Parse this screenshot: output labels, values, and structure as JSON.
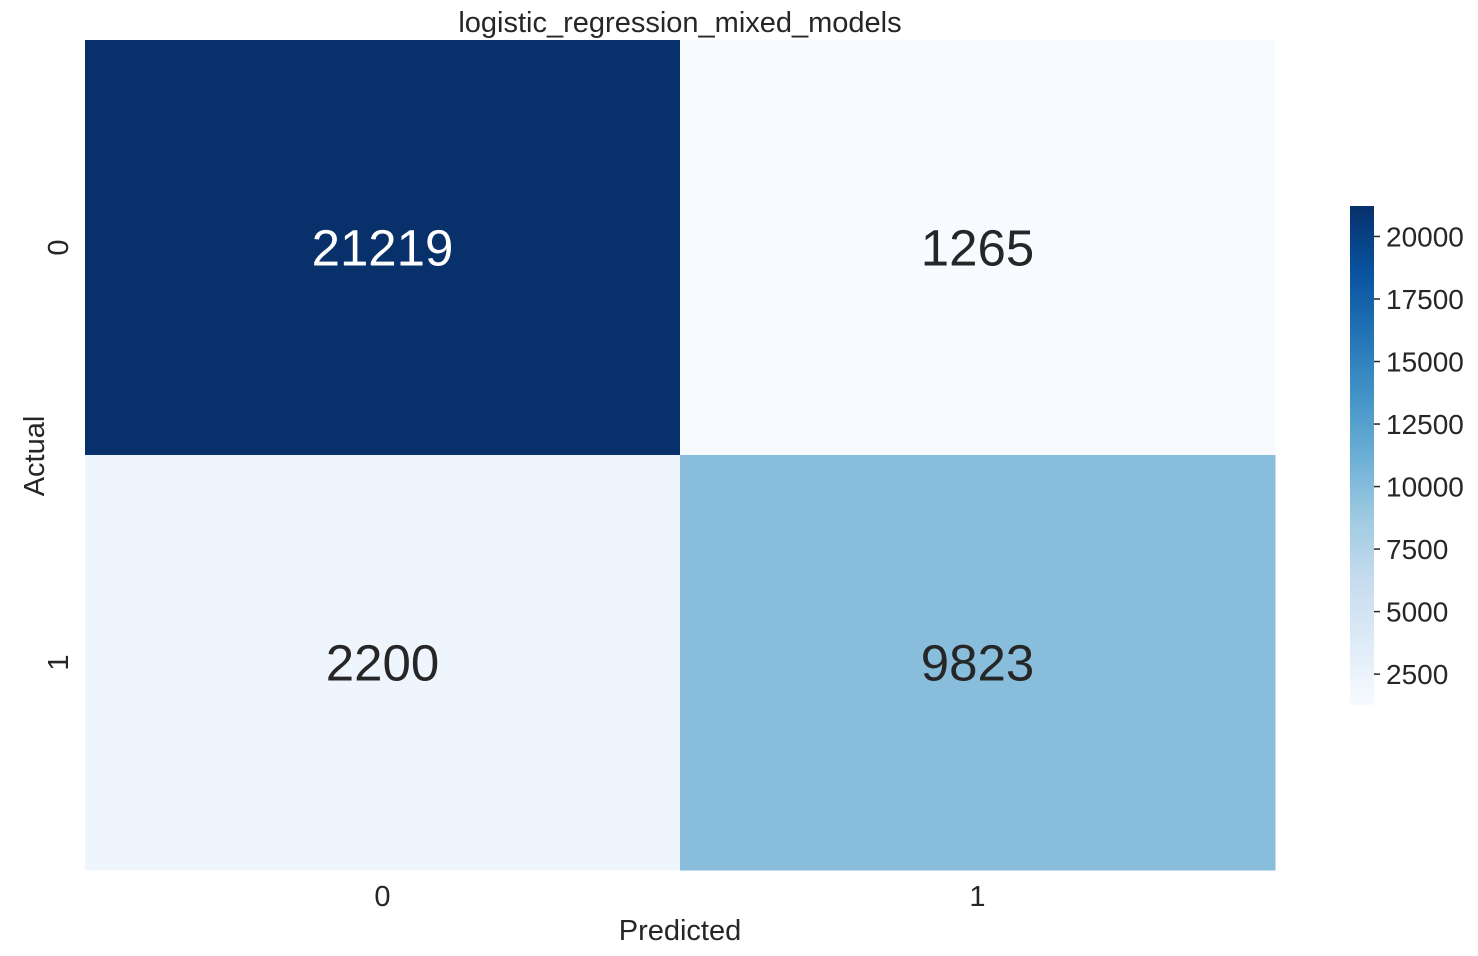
{
  "chart_data": {
    "type": "heatmap",
    "title": "logistic_regression_mixed_models",
    "xlabel": "Predicted",
    "ylabel": "Actual",
    "x_categories": [
      "0",
      "1"
    ],
    "y_categories": [
      "0",
      "1"
    ],
    "values": [
      [
        21219,
        1265
      ],
      [
        2200,
        9823
      ]
    ],
    "colormap": "Blues",
    "colorbar": {
      "min": 1265,
      "max": 21219,
      "ticks": [
        2500,
        5000,
        7500,
        10000,
        12500,
        15000,
        17500,
        20000
      ],
      "tick_labels": [
        "2500",
        "5000",
        "7500",
        "10000",
        "12500",
        "15000",
        "17500",
        "20000"
      ]
    },
    "grid": false,
    "annotations": true
  },
  "colors": {
    "background": "#ffffff",
    "text": "#262626",
    "annotation_light": "#ffffff",
    "annotation_dark": "#262626"
  }
}
